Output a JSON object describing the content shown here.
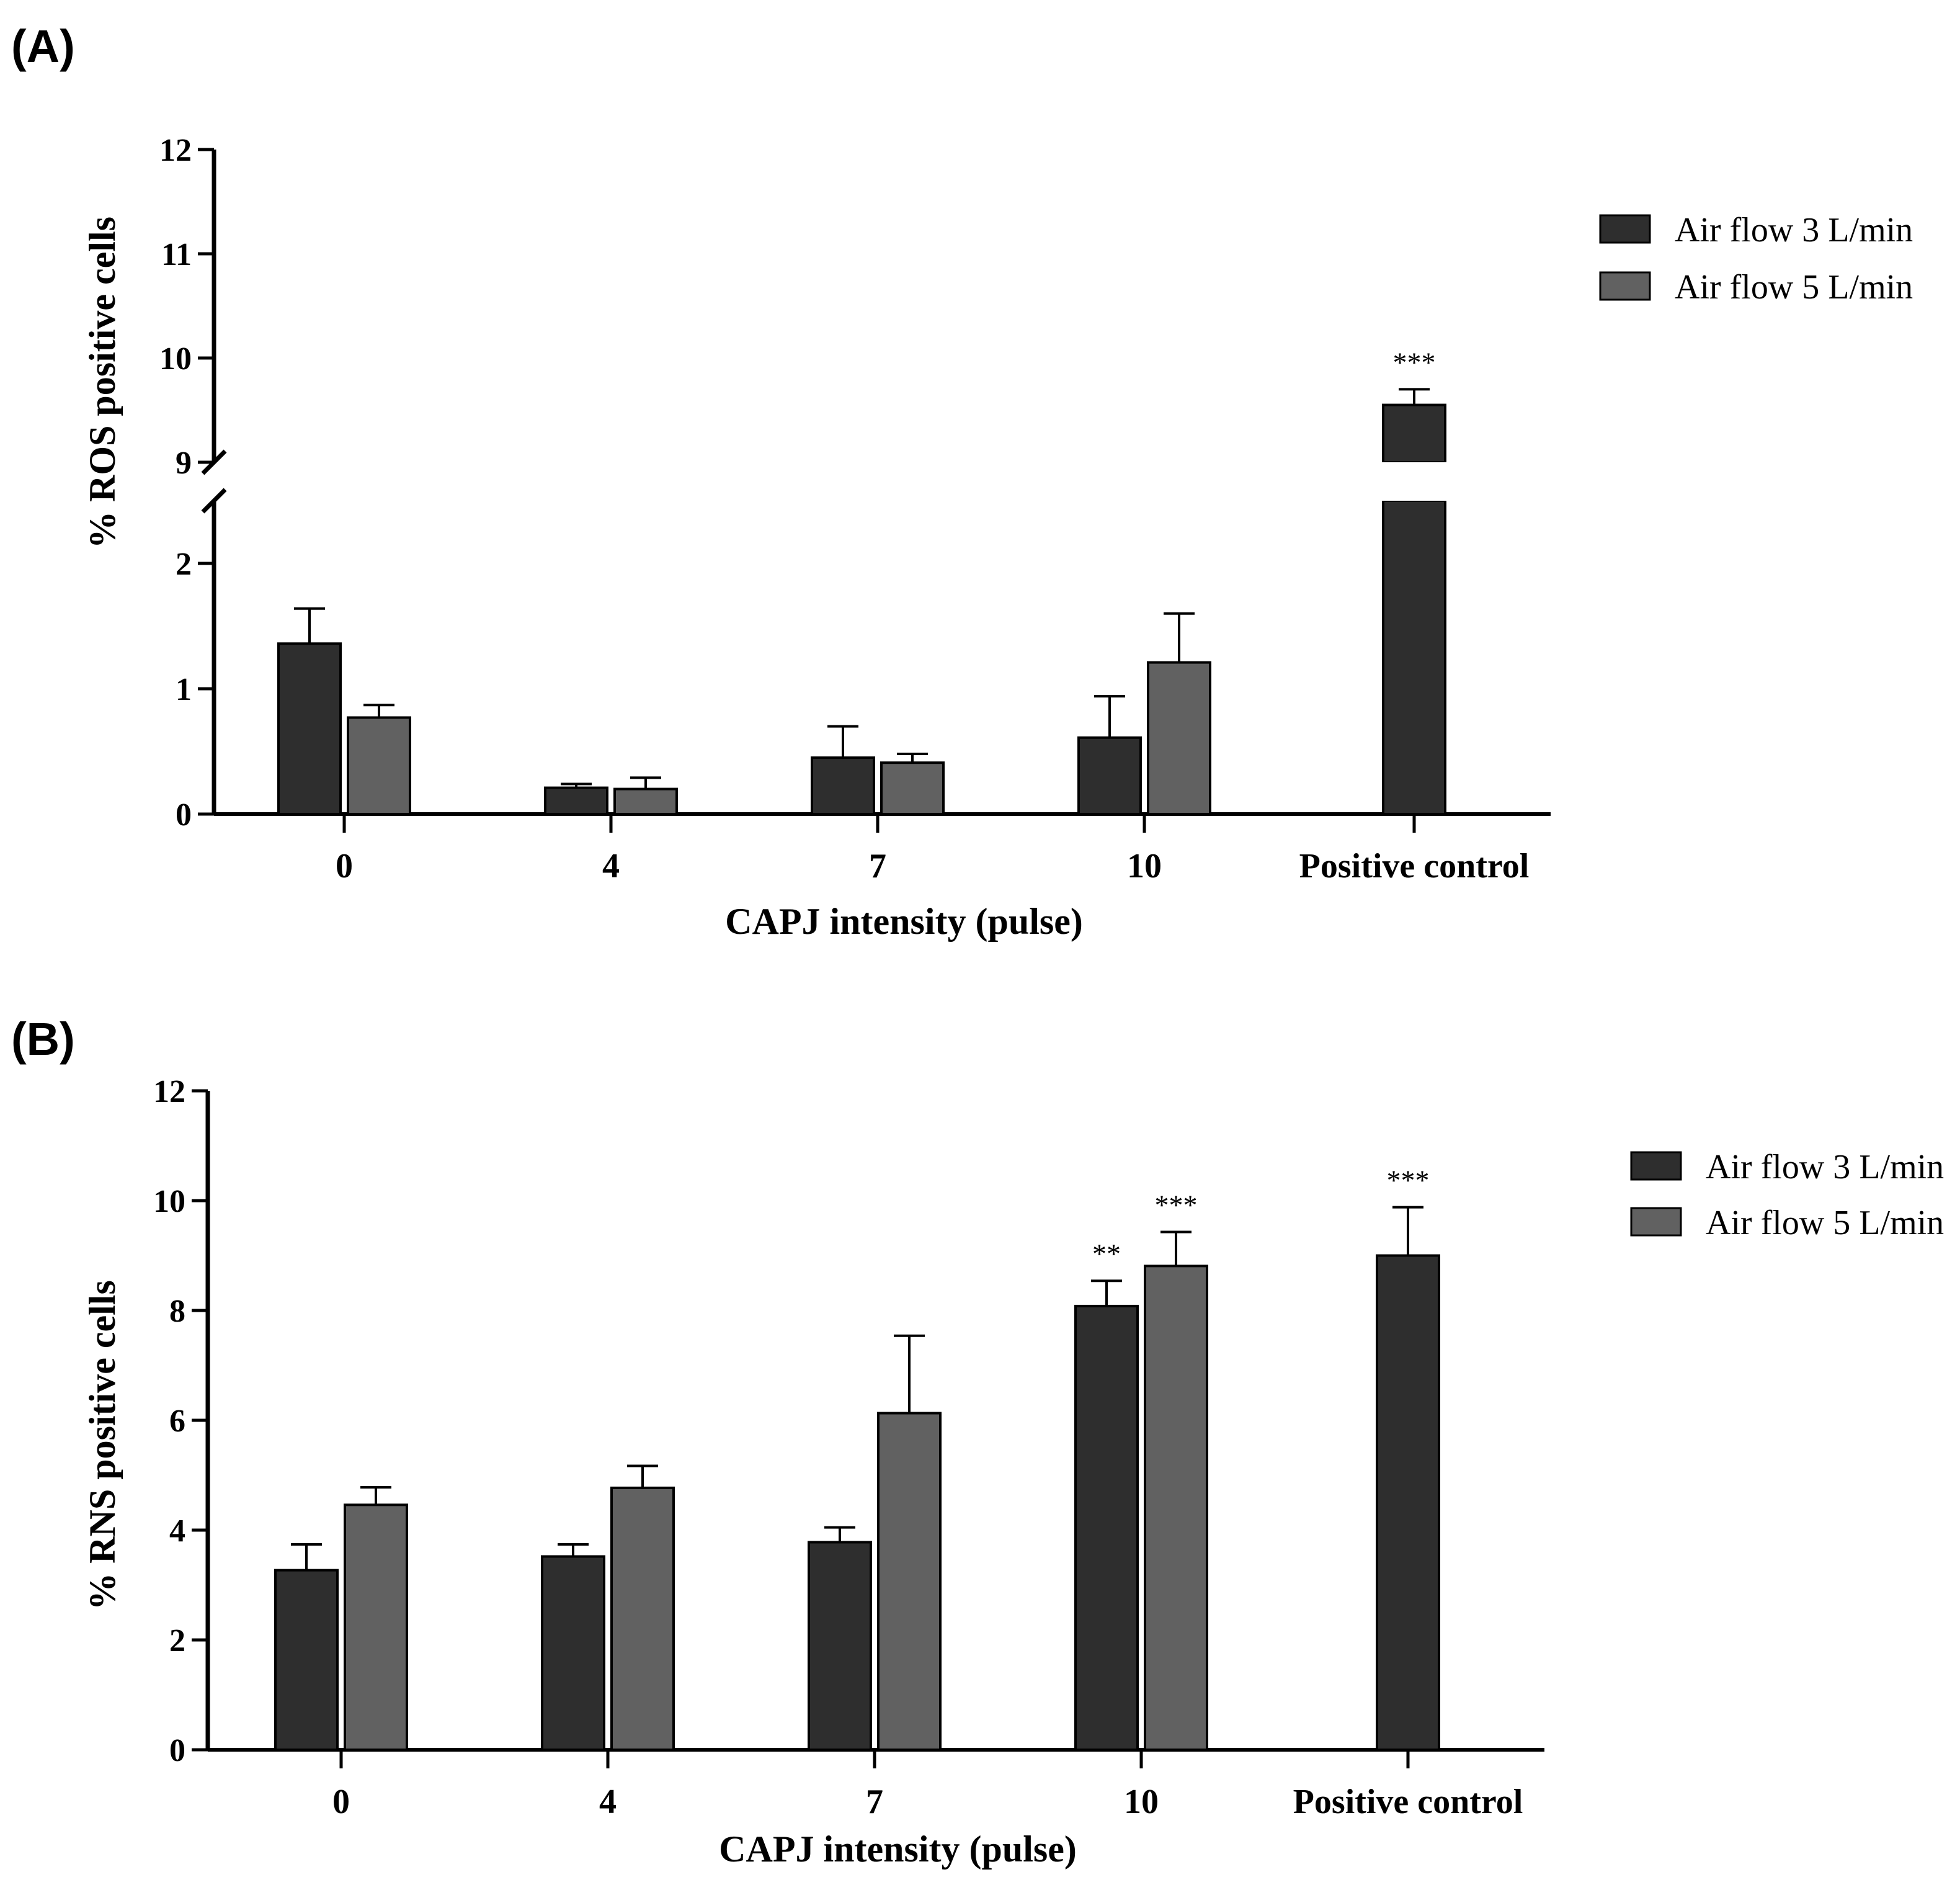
{
  "chart_data": [
    {
      "type": "bar",
      "panel_label": "(A)",
      "categories": [
        "0",
        "4",
        "7",
        "10",
        "Positive control"
      ],
      "xlabel": "CAPJ intensity (pulse)",
      "ylabel": "% ROS positive cells",
      "y_axis": "broken",
      "y_lower_segment": [
        0,
        2.5
      ],
      "y_upper_segment": [
        9,
        12
      ],
      "y_ticks": [
        "0",
        "1",
        "2",
        "9",
        "10",
        "11",
        "12"
      ],
      "series": [
        {
          "name": "Air flow 3 L/min",
          "color": "#2e2e2e",
          "values": [
            1.36,
            0.21,
            0.45,
            0.61,
            9.55
          ],
          "errors": [
            0.28,
            0.03,
            0.25,
            0.33,
            0.15
          ]
        },
        {
          "name": "Air flow 5 L/min",
          "color": "#616161",
          "values": [
            0.77,
            0.2,
            0.41,
            1.21,
            null
          ],
          "errors": [
            0.1,
            0.09,
            0.07,
            0.39,
            null
          ]
        }
      ],
      "annotations": [
        {
          "category": "Positive control",
          "series": "Air flow 3 L/min",
          "text": "***"
        }
      ],
      "legend": "top-right"
    },
    {
      "type": "bar",
      "panel_label": "(B)",
      "categories": [
        "0",
        "4",
        "7",
        "10",
        "Positive control"
      ],
      "xlabel": "CAPJ intensity (pulse)",
      "ylabel": "% RNS positive cells",
      "ylim": [
        0,
        12
      ],
      "y_ticks": [
        "0",
        "2",
        "4",
        "6",
        "8",
        "10",
        "12"
      ],
      "series": [
        {
          "name": "Air flow 3 L/min",
          "color": "#2e2e2e",
          "values": [
            3.27,
            3.52,
            3.78,
            8.08,
            9.0
          ],
          "errors": [
            0.47,
            0.22,
            0.27,
            0.46,
            0.88
          ]
        },
        {
          "name": "Air flow 5 L/min",
          "color": "#616161",
          "values": [
            4.46,
            4.77,
            6.13,
            8.81,
            null
          ],
          "errors": [
            0.32,
            0.4,
            1.41,
            0.62,
            null
          ]
        }
      ],
      "annotations": [
        {
          "category": "10",
          "series": "Air flow 3 L/min",
          "text": "**"
        },
        {
          "category": "10",
          "series": "Air flow 5 L/min",
          "text": "***"
        },
        {
          "category": "Positive control",
          "series": "Air flow 3 L/min",
          "text": "***"
        }
      ],
      "legend": "top-right"
    }
  ]
}
